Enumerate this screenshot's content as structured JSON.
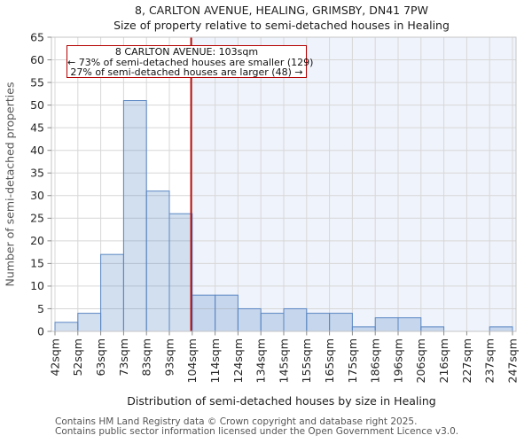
{
  "chart_data": {
    "type": "bar",
    "title": "8, CARLTON AVENUE, HEALING, GRIMSBY, DN41 7PW",
    "subtitle": "Size of property relative to semi-detached houses in Healing",
    "xlabel": "Distribution of semi-detached houses by size in Healing",
    "ylabel": "Number of semi-detached properties",
    "x_tick_labels": [
      "42sqm",
      "52sqm",
      "63sqm",
      "73sqm",
      "83sqm",
      "93sqm",
      "104sqm",
      "114sqm",
      "124sqm",
      "134sqm",
      "145sqm",
      "155sqm",
      "165sqm",
      "175sqm",
      "186sqm",
      "196sqm",
      "206sqm",
      "216sqm",
      "227sqm",
      "237sqm",
      "247sqm"
    ],
    "x_range_sqm": [
      42,
      247
    ],
    "values": [
      2,
      4,
      17,
      51,
      31,
      26,
      8,
      8,
      5,
      4,
      5,
      4,
      4,
      1,
      3,
      3,
      1,
      0,
      0,
      1
    ],
    "ylim": [
      0,
      65
    ],
    "ytick_step": 5,
    "grid": true,
    "marker": {
      "value_sqm": 103,
      "color": "#b40000"
    }
  },
  "annotation": {
    "line1": "8 CARLTON AVENUE: 103sqm",
    "line2": "← 73% of semi-detached houses are smaller (129)",
    "line3": "27% of semi-detached houses are larger (48) →"
  },
  "footer": {
    "line1": "Contains HM Land Registry data © Crown copyright and database right 2025.",
    "line2": "Contains public sector information licensed under the Open Government Licence v3.0."
  },
  "colors": {
    "bar_fill": "#4a80c0",
    "bar_fill_opacity": "0.25",
    "bar_edge": "#5b87c3",
    "marker": "#b40000",
    "shade": "#eff3fb",
    "grid": "#d7d7d7",
    "spine": "#c6c6c6",
    "tick": "#8a8a8a",
    "text": "#262626",
    "muted_text": "#565656"
  }
}
